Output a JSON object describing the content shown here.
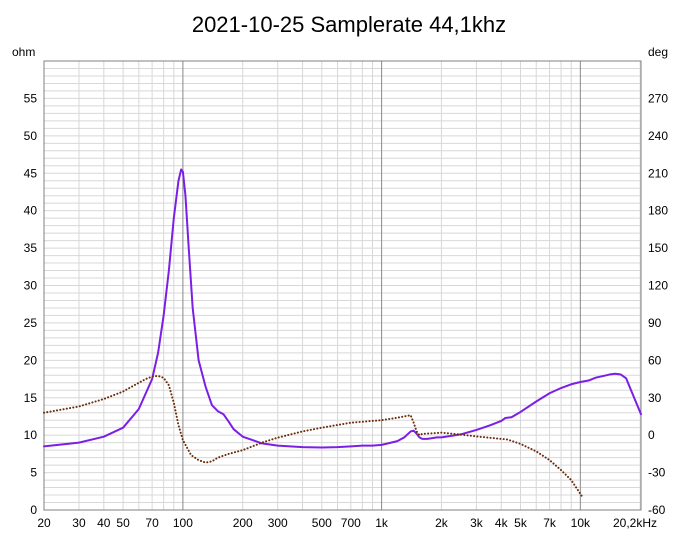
{
  "chart_data": {
    "type": "line",
    "title": "2021-10-25 Samplerate 44,1khz",
    "x_scale": "log",
    "xlim": [
      20,
      20200
    ],
    "y_left": {
      "unit": "ohm",
      "lim": [
        0,
        60
      ],
      "ticks": [
        0,
        5,
        10,
        15,
        20,
        25,
        30,
        35,
        40,
        45,
        50,
        55
      ]
    },
    "y_right": {
      "unit": "deg",
      "lim": [
        -60,
        300
      ],
      "ticks": [
        -60,
        -30,
        0,
        30,
        60,
        90,
        120,
        150,
        180,
        210,
        240,
        270
      ]
    },
    "x_ticks": [
      {
        "v": 20,
        "label": "20"
      },
      {
        "v": 30,
        "label": "30"
      },
      {
        "v": 40,
        "label": "40"
      },
      {
        "v": 50,
        "label": "50"
      },
      {
        "v": 70,
        "label": "70"
      },
      {
        "v": 100,
        "label": "100"
      },
      {
        "v": 200,
        "label": "200"
      },
      {
        "v": 300,
        "label": "300"
      },
      {
        "v": 500,
        "label": "500"
      },
      {
        "v": 700,
        "label": "700"
      },
      {
        "v": 1000,
        "label": "1k"
      },
      {
        "v": 2000,
        "label": "2k"
      },
      {
        "v": 3000,
        "label": "3k"
      },
      {
        "v": 4000,
        "label": "4k"
      },
      {
        "v": 5000,
        "label": "5k"
      },
      {
        "v": 7000,
        "label": "7k"
      },
      {
        "v": 10000,
        "label": "10k"
      },
      {
        "v": 20200,
        "label": "20,2kHz"
      }
    ],
    "grid": true,
    "colors": {
      "impedance": "#7b1fe6",
      "phase": "#6b2c0a",
      "background": "#ffffff",
      "grid_minor": "#d8d8d8",
      "grid_major": "#8a8a8a"
    },
    "series": [
      {
        "axis": "left",
        "style": "solid",
        "x": [
          20,
          30,
          40,
          50,
          60,
          70,
          75,
          80,
          85,
          90,
          95,
          98,
          100,
          103,
          107,
          112,
          120,
          130,
          140,
          150,
          160,
          170,
          180,
          200,
          250,
          300,
          400,
          500,
          600,
          700,
          800,
          900,
          1000,
          1200,
          1300,
          1400,
          1450,
          1500,
          1550,
          1600,
          1700,
          1800,
          1900,
          2000,
          2500,
          3000,
          3500,
          4000,
          4200,
          4500,
          5000,
          6000,
          7000,
          8000,
          9000,
          10000,
          11000,
          12000,
          13000,
          14000,
          15000,
          16000,
          17000,
          18000,
          19000,
          20200
        ],
        "y": [
          8.5,
          9.0,
          9.8,
          11.0,
          13.5,
          17.5,
          21.0,
          26.0,
          32.0,
          39.0,
          44.0,
          45.5,
          45.2,
          42.0,
          35.0,
          27.0,
          20.0,
          16.5,
          14.0,
          13.2,
          12.8,
          11.8,
          10.8,
          9.8,
          8.9,
          8.6,
          8.4,
          8.35,
          8.4,
          8.5,
          8.6,
          8.6,
          8.7,
          9.2,
          9.7,
          10.5,
          10.6,
          10.2,
          9.7,
          9.5,
          9.5,
          9.6,
          9.7,
          9.7,
          10.1,
          10.7,
          11.3,
          11.9,
          12.3,
          12.4,
          13.1,
          14.5,
          15.6,
          16.3,
          16.8,
          17.1,
          17.3,
          17.7,
          17.9,
          18.1,
          18.2,
          18.1,
          17.6,
          16.0,
          14.5,
          12.8
        ]
      },
      {
        "axis": "right",
        "style": "dotted",
        "x": [
          20,
          30,
          40,
          50,
          60,
          65,
          70,
          75,
          80,
          85,
          90,
          95,
          100,
          110,
          120,
          130,
          140,
          150,
          170,
          200,
          250,
          300,
          400,
          500,
          700,
          1000,
          1200,
          1400,
          1450,
          1500,
          1550,
          1600,
          1800,
          2000,
          2500,
          3000,
          4000,
          4300,
          5000,
          6000,
          7000,
          8000,
          9000,
          10000,
          10300
        ],
        "y": [
          18,
          23,
          29,
          35,
          42,
          45,
          47,
          47.5,
          46,
          40,
          26,
          8,
          -4,
          -16,
          -20,
          -22,
          -21,
          -18,
          -15,
          -12,
          -6,
          -2,
          3,
          6,
          10,
          12,
          14,
          16,
          10,
          3,
          0,
          1,
          1.5,
          2,
          0.5,
          -1,
          -3,
          -3.5,
          -7,
          -13,
          -20,
          -28,
          -36,
          -47,
          -50
        ]
      }
    ]
  }
}
